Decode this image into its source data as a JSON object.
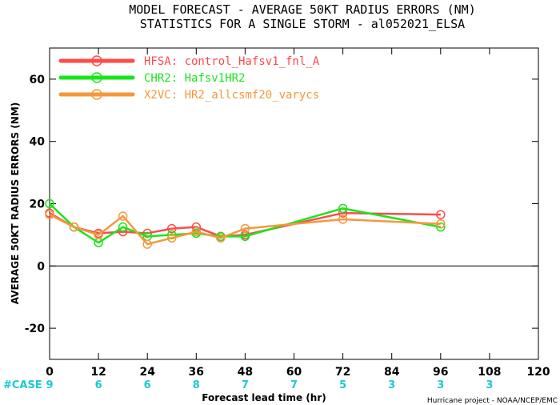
{
  "chart_data": {
    "type": "line",
    "title": "MODEL FORECAST - AVERAGE 50KT RADIUS ERRORS (NM)",
    "subtitle": "STATISTICS FOR A SINGLE STORM - al052021_ELSA",
    "xlabel": "Forecast lead time (hr)",
    "ylabel": "AVERAGE 50KT RADIUS ERRORS (NM)",
    "xlim": [
      0,
      120
    ],
    "ylim": [
      -30,
      70
    ],
    "xticks": [
      0,
      12,
      24,
      36,
      48,
      60,
      72,
      84,
      96,
      108,
      120
    ],
    "yticks": [
      -20,
      0,
      20,
      40,
      60
    ],
    "zero_line": true,
    "legend_position": "top-left",
    "series": [
      {
        "name": "HFSA:",
        "desc": "control_Hafsv1_fnl_A",
        "color": "#ff4a4a",
        "x": [
          0,
          6,
          12,
          18,
          24,
          30,
          36,
          42,
          48,
          72,
          96
        ],
        "y": [
          17,
          12.5,
          10.5,
          11,
          10.5,
          12,
          12.5,
          9.5,
          10,
          17,
          16.5
        ]
      },
      {
        "name": "CHR2:",
        "desc": "Hafsv1HR2",
        "color": "#19e619",
        "x": [
          0,
          6,
          12,
          18,
          24,
          30,
          36,
          42,
          48,
          72,
          96
        ],
        "y": [
          20,
          12.5,
          7.5,
          12.5,
          9.5,
          10,
          10.5,
          9.5,
          9.5,
          18.5,
          12.5
        ]
      },
      {
        "name": "X2VC:",
        "desc": "HR2_allcsmf20_varycs",
        "color": "#f5973d",
        "x": [
          0,
          6,
          12,
          18,
          24,
          30,
          36,
          42,
          48,
          72,
          96
        ],
        "y": [
          16.5,
          12.5,
          10,
          16,
          7,
          9,
          11,
          9,
          12,
          15,
          13.5
        ]
      }
    ],
    "case_label": "#CASE",
    "case_color": "#1cc9d6",
    "cases": [
      {
        "x": 0,
        "n": "9"
      },
      {
        "x": 12,
        "n": "6"
      },
      {
        "x": 24,
        "n": "6"
      },
      {
        "x": 36,
        "n": "8"
      },
      {
        "x": 48,
        "n": "7"
      },
      {
        "x": 60,
        "n": "7"
      },
      {
        "x": 72,
        "n": "5"
      },
      {
        "x": 84,
        "n": "3"
      },
      {
        "x": 96,
        "n": "3"
      },
      {
        "x": 108,
        "n": "3"
      }
    ],
    "credit": "Hurricane project - NOAA/NCEP/EMC"
  }
}
